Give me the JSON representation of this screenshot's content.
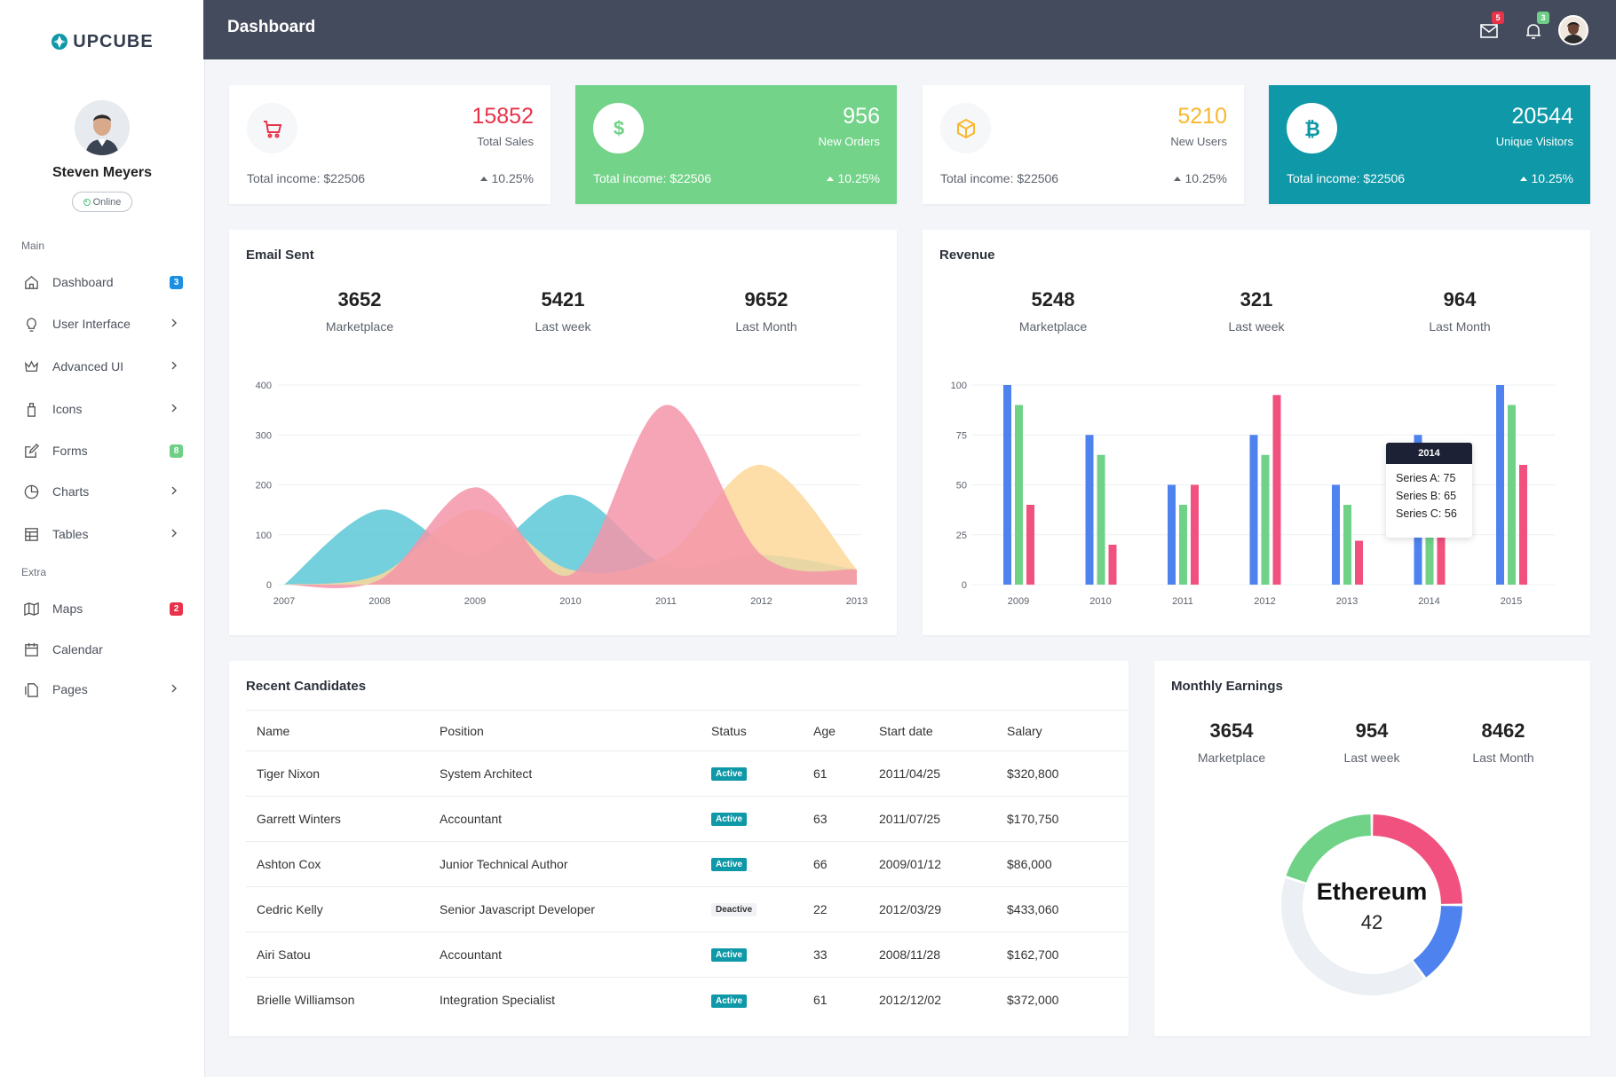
{
  "sidebar": {
    "logo_text": "UPCUBE",
    "user_name": "Steven Meyers",
    "user_status": "Online",
    "sections": [
      {
        "title": "Main",
        "items": [
          {
            "label": "Dashboard",
            "icon": "home-icon",
            "badge": "3",
            "badge_color": "#1a8fe3"
          },
          {
            "label": "User Interface",
            "icon": "lightbulb-icon",
            "chevron": true
          },
          {
            "label": "Advanced UI",
            "icon": "crown-icon",
            "chevron": true
          },
          {
            "label": "Icons",
            "icon": "brush-icon",
            "chevron": true
          },
          {
            "label": "Forms",
            "icon": "edit-icon",
            "badge": "8",
            "badge_color": "#6fcf87"
          },
          {
            "label": "Charts",
            "icon": "pie-chart-icon",
            "chevron": true
          },
          {
            "label": "Tables",
            "icon": "table-icon",
            "chevron": true
          }
        ]
      },
      {
        "title": "Extra",
        "items": [
          {
            "label": "Maps",
            "icon": "map-icon",
            "badge": "2",
            "badge_color": "#e8334a"
          },
          {
            "label": "Calendar",
            "icon": "calendar-icon"
          },
          {
            "label": "Pages",
            "icon": "pages-icon",
            "chevron": true
          }
        ]
      }
    ]
  },
  "topbar": {
    "title": "Dashboard",
    "mail_badge": "5",
    "bell_badge": "3"
  },
  "stats": [
    {
      "value": "15852",
      "label": "Total Sales",
      "income": "Total income: $22506",
      "pct": "10.25%",
      "icon": "cart-icon",
      "theme": "light",
      "accent": "#e8334a"
    },
    {
      "value": "956",
      "label": "New Orders",
      "income": "Total income: $22506",
      "pct": "10.25%",
      "icon": "dollar-icon",
      "theme": "green",
      "accent": "#6fd287"
    },
    {
      "value": "5210",
      "label": "New Users",
      "income": "Total income: $22506",
      "pct": "10.25%",
      "icon": "box-icon",
      "theme": "light",
      "accent": "#f8b82e"
    },
    {
      "value": "20544",
      "label": "Unique Visitors",
      "income": "Total income: $22506",
      "pct": "10.25%",
      "icon": "bitcoin-icon",
      "theme": "teal",
      "accent": "#0e98a8"
    }
  ],
  "email_sent": {
    "title": "Email Sent",
    "metrics": [
      {
        "value": "3652",
        "label": "Marketplace"
      },
      {
        "value": "5421",
        "label": "Last week"
      },
      {
        "value": "9652",
        "label": "Last Month"
      }
    ]
  },
  "revenue": {
    "title": "Revenue",
    "metrics": [
      {
        "value": "5248",
        "label": "Marketplace"
      },
      {
        "value": "321",
        "label": "Last week"
      },
      {
        "value": "964",
        "label": "Last Month"
      }
    ],
    "tooltip": {
      "title": "2014",
      "lines": [
        "Series A: 75",
        "Series B: 65",
        "Series C: 56"
      ]
    }
  },
  "candidates": {
    "title": "Recent Candidates",
    "columns": [
      "Name",
      "Position",
      "Status",
      "Age",
      "Start date",
      "Salary"
    ],
    "rows": [
      {
        "name": "Tiger Nixon",
        "position": "System Architect",
        "status": "Active",
        "age": "61",
        "start": "2011/04/25",
        "salary": "$320,800"
      },
      {
        "name": "Garrett Winters",
        "position": "Accountant",
        "status": "Active",
        "age": "63",
        "start": "2011/07/25",
        "salary": "$170,750"
      },
      {
        "name": "Ashton Cox",
        "position": "Junior Technical Author",
        "status": "Active",
        "age": "66",
        "start": "2009/01/12",
        "salary": "$86,000"
      },
      {
        "name": "Cedric Kelly",
        "position": "Senior Javascript Developer",
        "status": "Deactive",
        "age": "22",
        "start": "2012/03/29",
        "salary": "$433,060"
      },
      {
        "name": "Airi Satou",
        "position": "Accountant",
        "status": "Active",
        "age": "33",
        "start": "2008/11/28",
        "salary": "$162,700"
      },
      {
        "name": "Brielle Williamson",
        "position": "Integration Specialist",
        "status": "Active",
        "age": "61",
        "start": "2012/12/02",
        "salary": "$372,000"
      }
    ]
  },
  "monthly": {
    "title": "Monthly Earnings",
    "metrics": [
      {
        "value": "3654",
        "label": "Marketplace"
      },
      {
        "value": "954",
        "label": "Last week"
      },
      {
        "value": "8462",
        "label": "Last Month"
      }
    ]
  },
  "chart_data": [
    {
      "type": "area",
      "x": [
        "2007",
        "2008",
        "2009",
        "2010",
        "2011",
        "2012",
        "2013"
      ],
      "ylim": [
        0,
        400
      ],
      "yticks": [
        0,
        100,
        200,
        300,
        400
      ],
      "series": [
        {
          "values": [
            0,
            150,
            60,
            180,
            40,
            60,
            30
          ],
          "color": "#5bc8d6"
        },
        {
          "values": [
            0,
            20,
            150,
            30,
            60,
            240,
            30
          ],
          "color": "#fdd89a"
        },
        {
          "values": [
            0,
            10,
            195,
            20,
            360,
            60,
            30
          ],
          "color": "#f595a9"
        }
      ]
    },
    {
      "type": "bar",
      "categories": [
        "2009",
        "2010",
        "2011",
        "2012",
        "2013",
        "2014",
        "2015"
      ],
      "ylim": [
        0,
        100
      ],
      "yticks": [
        0,
        25,
        50,
        75,
        100
      ],
      "series": [
        {
          "name": "Series A",
          "values": [
            100,
            75,
            50,
            75,
            50,
            75,
            100
          ],
          "color": "#4e83ef"
        },
        {
          "name": "Series B",
          "values": [
            90,
            65,
            40,
            65,
            40,
            65,
            90
          ],
          "color": "#6fd287"
        },
        {
          "name": "Series C",
          "values": [
            40,
            20,
            50,
            95,
            22,
            56,
            60
          ],
          "color": "#f1517e"
        }
      ]
    },
    {
      "type": "pie",
      "center_label": "Ethereum",
      "center_value": "42",
      "slices": [
        {
          "value": 20,
          "color": "#6fd287"
        },
        {
          "value": 25,
          "color": "#f1517e"
        },
        {
          "value": 15,
          "color": "#4e83ef"
        },
        {
          "value": 40,
          "color": "#eceff3"
        }
      ]
    }
  ]
}
